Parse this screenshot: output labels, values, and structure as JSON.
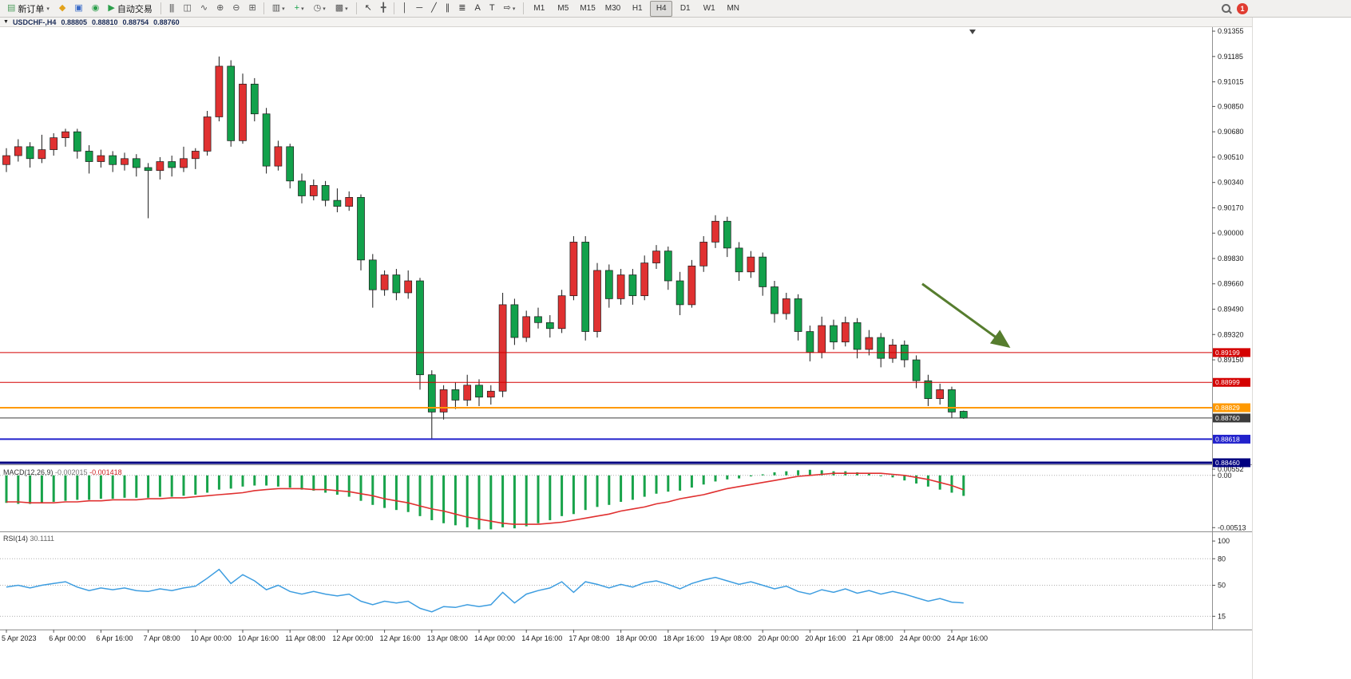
{
  "toolbar": {
    "groups": [
      [
        {
          "name": "new-order-button",
          "glyph": "▤",
          "color": "#4f9d5d",
          "label": "新订单",
          "caret": true
        },
        {
          "name": "mql5-button",
          "glyph": "◆",
          "color": "#e2a21b"
        },
        {
          "name": "community-button",
          "glyph": "▣",
          "color": "#3a6bc8"
        },
        {
          "name": "metaquotes-button",
          "glyph": "◉",
          "color": "#2c9f4b"
        },
        {
          "name": "algo-trading-button",
          "glyph": "▶",
          "color": "#2c9f4b",
          "label": "自动交易"
        }
      ],
      [
        {
          "name": "bar-chart-button",
          "glyph": "|||",
          "color": "#555555"
        },
        {
          "name": "candle-chart-button",
          "glyph": "◫",
          "color": "#555555"
        },
        {
          "name": "line-chart-button",
          "glyph": "∿",
          "color": "#555555"
        },
        {
          "name": "zoom-in-button",
          "glyph": "⊕",
          "color": "#555555"
        },
        {
          "name": "zoom-out-button",
          "glyph": "⊖",
          "color": "#555555"
        },
        {
          "name": "tile-windows-button",
          "glyph": "⊞",
          "color": "#555555"
        }
      ],
      [
        {
          "name": "charts-list-button",
          "glyph": "▥",
          "color": "#555555",
          "caret": true
        },
        {
          "name": "indicators-button",
          "glyph": "+",
          "color": "#18a34a",
          "caret": true
        },
        {
          "name": "periods-button",
          "glyph": "◷",
          "color": "#555555",
          "caret": true
        },
        {
          "name": "templates-button",
          "glyph": "▩",
          "color": "#555555",
          "caret": true
        }
      ],
      [
        {
          "name": "cursor-button",
          "glyph": "↖",
          "color": "#333333"
        },
        {
          "name": "crosshair-button",
          "glyph": "╋",
          "color": "#555555"
        }
      ],
      [
        {
          "name": "vertical-line-button",
          "glyph": "│",
          "color": "#333333"
        },
        {
          "name": "horizontal-line-button",
          "glyph": "─",
          "color": "#333333"
        },
        {
          "name": "trendline-button",
          "glyph": "╱",
          "color": "#333333"
        },
        {
          "name": "channel-button",
          "glyph": "∥",
          "color": "#333333"
        },
        {
          "name": "fibonacci-button",
          "glyph": "≣",
          "color": "#333333"
        },
        {
          "name": "text-button",
          "glyph": "A",
          "color": "#333333"
        },
        {
          "name": "label-button",
          "glyph": "T",
          "color": "#333333"
        },
        {
          "name": "shapes-button",
          "glyph": "⇨",
          "color": "#333333",
          "caret": true
        }
      ]
    ],
    "timeframes": {
      "items": [
        "M1",
        "M5",
        "M15",
        "M30",
        "H1",
        "H4",
        "D1",
        "W1",
        "MN"
      ],
      "active": "H4"
    },
    "notification_count": "1"
  },
  "chart_header": {
    "collapse_icon": "▼",
    "title": "USDCHF-,H4",
    "open": "0.88805",
    "high": "0.88810",
    "low": "0.88754",
    "close": "0.88760"
  },
  "chart_data": [
    {
      "type": "candlestick",
      "title": "USDCHF-,H4",
      "period": "H4",
      "up_color": "#e03131",
      "down_color": "#12a14b",
      "wick_color": "#1a1a1a",
      "x_labels": [
        "5 Apr 2023",
        "6 Apr 00:00",
        "6 Apr 16:00",
        "7 Apr 08:00",
        "10 Apr 00:00",
        "10 Apr 16:00",
        "11 Apr 08:00",
        "12 Apr 00:00",
        "12 Apr 16:00",
        "13 Apr 08:00",
        "14 Apr 00:00",
        "14 Apr 16:00",
        "17 Apr 08:00",
        "18 Apr 00:00",
        "18 Apr 16:00",
        "19 Apr 08:00",
        "20 Apr 00:00",
        "20 Apr 16:00",
        "21 Apr 08:00",
        "24 Apr 00:00",
        "24 Apr 16:00"
      ],
      "x_label_every": 4,
      "y_axis": {
        "max": 0.91382,
        "min": 0.88449,
        "ticks": [
          "0.91355",
          "0.91185",
          "0.91015",
          "0.90850",
          "0.90680",
          "0.90510",
          "0.90340",
          "0.90170",
          "0.90000",
          "0.89830",
          "0.89660",
          "0.89490",
          "0.89320",
          "0.89150"
        ]
      },
      "ohlc": [
        [
          0.9046,
          0.9057,
          0.9041,
          0.9052
        ],
        [
          0.9052,
          0.9063,
          0.9048,
          0.9058
        ],
        [
          0.9058,
          0.9061,
          0.9044,
          0.905
        ],
        [
          0.905,
          0.9066,
          0.9047,
          0.9056
        ],
        [
          0.9056,
          0.9067,
          0.9052,
          0.9064
        ],
        [
          0.9064,
          0.907,
          0.9058,
          0.9068
        ],
        [
          0.9068,
          0.907,
          0.905,
          0.9055
        ],
        [
          0.9055,
          0.9059,
          0.904,
          0.9048
        ],
        [
          0.9048,
          0.9056,
          0.9044,
          0.9052
        ],
        [
          0.9052,
          0.9055,
          0.9041,
          0.9046
        ],
        [
          0.9046,
          0.9054,
          0.9042,
          0.905
        ],
        [
          0.905,
          0.9053,
          0.9038,
          0.9044
        ],
        [
          0.9044,
          0.9047,
          0.901,
          0.9042
        ],
        [
          0.9042,
          0.9051,
          0.9036,
          0.9048
        ],
        [
          0.9048,
          0.9052,
          0.9038,
          0.9044
        ],
        [
          0.9044,
          0.9058,
          0.9041,
          0.905
        ],
        [
          0.905,
          0.9057,
          0.9043,
          0.9055
        ],
        [
          0.9055,
          0.9082,
          0.9052,
          0.9078
        ],
        [
          0.9078,
          0.91185,
          0.9075,
          0.9112
        ],
        [
          0.9112,
          0.9116,
          0.9058,
          0.9062
        ],
        [
          0.9062,
          0.9107,
          0.906,
          0.91
        ],
        [
          0.91,
          0.9104,
          0.9075,
          0.908
        ],
        [
          0.908,
          0.9084,
          0.904,
          0.9045
        ],
        [
          0.9045,
          0.9062,
          0.9042,
          0.9058
        ],
        [
          0.9058,
          0.906,
          0.903,
          0.9035
        ],
        [
          0.9035,
          0.904,
          0.902,
          0.9025
        ],
        [
          0.9025,
          0.9036,
          0.9022,
          0.9032
        ],
        [
          0.9032,
          0.9035,
          0.9018,
          0.9022
        ],
        [
          0.9022,
          0.903,
          0.9014,
          0.9018
        ],
        [
          0.9018,
          0.9028,
          0.9015,
          0.9024
        ],
        [
          0.9024,
          0.9026,
          0.8975,
          0.8982
        ],
        [
          0.8982,
          0.8986,
          0.895,
          0.8962
        ],
        [
          0.8962,
          0.8975,
          0.8958,
          0.8972
        ],
        [
          0.8972,
          0.8976,
          0.8955,
          0.896
        ],
        [
          0.896,
          0.8975,
          0.8956,
          0.8968
        ],
        [
          0.8968,
          0.897,
          0.8895,
          0.8905
        ],
        [
          0.8905,
          0.8908,
          0.8862,
          0.888
        ],
        [
          0.888,
          0.8898,
          0.8875,
          0.8895
        ],
        [
          0.8895,
          0.89,
          0.8882,
          0.8888
        ],
        [
          0.8888,
          0.8905,
          0.8884,
          0.8898
        ],
        [
          0.8898,
          0.8902,
          0.8884,
          0.889
        ],
        [
          0.889,
          0.8898,
          0.8885,
          0.8894
        ],
        [
          0.8894,
          0.896,
          0.889,
          0.8952
        ],
        [
          0.8952,
          0.8956,
          0.8925,
          0.893
        ],
        [
          0.893,
          0.8948,
          0.8927,
          0.8944
        ],
        [
          0.8944,
          0.895,
          0.8936,
          0.894
        ],
        [
          0.894,
          0.8945,
          0.893,
          0.8936
        ],
        [
          0.8936,
          0.8962,
          0.8933,
          0.8958
        ],
        [
          0.8958,
          0.8998,
          0.8955,
          0.8994
        ],
        [
          0.8994,
          0.8998,
          0.8928,
          0.8934
        ],
        [
          0.8934,
          0.898,
          0.893,
          0.8975
        ],
        [
          0.8975,
          0.8979,
          0.895,
          0.8956
        ],
        [
          0.8956,
          0.8976,
          0.8952,
          0.8972
        ],
        [
          0.8972,
          0.8976,
          0.8952,
          0.8958
        ],
        [
          0.8958,
          0.8985,
          0.8955,
          0.898
        ],
        [
          0.898,
          0.8992,
          0.8976,
          0.8988
        ],
        [
          0.8988,
          0.8991,
          0.8962,
          0.8968
        ],
        [
          0.8968,
          0.8974,
          0.8945,
          0.8952
        ],
        [
          0.8952,
          0.8982,
          0.895,
          0.8978
        ],
        [
          0.8978,
          0.8998,
          0.8974,
          0.8994
        ],
        [
          0.8994,
          0.9012,
          0.899,
          0.9008
        ],
        [
          0.9008,
          0.9011,
          0.8984,
          0.899
        ],
        [
          0.899,
          0.8994,
          0.8968,
          0.8974
        ],
        [
          0.8974,
          0.8988,
          0.897,
          0.8984
        ],
        [
          0.8984,
          0.8987,
          0.8958,
          0.8964
        ],
        [
          0.8964,
          0.8968,
          0.894,
          0.8946
        ],
        [
          0.8946,
          0.896,
          0.8942,
          0.8956
        ],
        [
          0.8956,
          0.8959,
          0.8928,
          0.8934
        ],
        [
          0.8934,
          0.8938,
          0.8914,
          0.892
        ],
        [
          0.892,
          0.8944,
          0.8916,
          0.8938
        ],
        [
          0.8938,
          0.8942,
          0.8922,
          0.8927
        ],
        [
          0.8927,
          0.8944,
          0.8924,
          0.894
        ],
        [
          0.894,
          0.8943,
          0.8916,
          0.8922
        ],
        [
          0.8922,
          0.8935,
          0.8918,
          0.893
        ],
        [
          0.893,
          0.8933,
          0.891,
          0.8916
        ],
        [
          0.8916,
          0.8929,
          0.8913,
          0.8925
        ],
        [
          0.8925,
          0.8928,
          0.891,
          0.8915
        ],
        [
          0.8915,
          0.8918,
          0.8896,
          0.8901
        ],
        [
          0.8901,
          0.8905,
          0.8884,
          0.8889
        ],
        [
          0.8889,
          0.8899,
          0.8885,
          0.8895
        ],
        [
          0.8895,
          0.8897,
          0.8876,
          0.888
        ],
        [
          0.88805,
          0.8881,
          0.88754,
          0.8876
        ]
      ],
      "lines": [
        {
          "price": 0.89199,
          "label": "0.89199",
          "color": "#d40000",
          "width": 1
        },
        {
          "price": 0.88999,
          "label": "0.88999",
          "color": "#d40000",
          "width": 1
        },
        {
          "price": 0.88829,
          "label": "0.88829",
          "color": "#ff9900",
          "width": 2
        },
        {
          "price": 0.8876,
          "label": "0.88760",
          "color": "#3c3c3c",
          "width": 1
        },
        {
          "price": 0.88618,
          "label": "0.88618",
          "color": "#2222cc",
          "width": 2
        },
        {
          "price": 0.8846,
          "label": "0.88460",
          "color": "#000080",
          "width": 3
        }
      ],
      "arrow": {
        "from_bar": 77.5,
        "from_price": 0.8966,
        "to_bar": 84.8,
        "to_price": 0.8924,
        "color": "#567d2e"
      }
    },
    {
      "type": "macd",
      "label": "MACD(12,26,9)",
      "values_text": [
        "-0.002015",
        "-0.001418"
      ],
      "histogram_color": "#18a34a",
      "signal_color": "#e03030",
      "axis_labels": [
        "0.00552",
        "0.00",
        "-0.00513"
      ],
      "y_max": 0.001,
      "y_min": -0.0055,
      "histogram": [
        -0.0027,
        -0.0028,
        -0.0028,
        -0.0027,
        -0.0026,
        -0.0025,
        -0.0024,
        -0.0024,
        -0.0023,
        -0.0023,
        -0.0022,
        -0.0022,
        -0.0022,
        -0.0021,
        -0.0021,
        -0.002,
        -0.0019,
        -0.0017,
        -0.0014,
        -0.0013,
        -0.0011,
        -0.001,
        -0.001,
        -0.0011,
        -0.0012,
        -0.0014,
        -0.0015,
        -0.0017,
        -0.0019,
        -0.0021,
        -0.0025,
        -0.0029,
        -0.0032,
        -0.0034,
        -0.0036,
        -0.004,
        -0.0044,
        -0.0047,
        -0.0049,
        -0.0051,
        -0.0053,
        -0.0053,
        -0.0051,
        -0.0052,
        -0.005,
        -0.0047,
        -0.0044,
        -0.004,
        -0.0038,
        -0.0034,
        -0.0031,
        -0.0029,
        -0.0026,
        -0.0024,
        -0.0021,
        -0.0018,
        -0.0016,
        -0.0015,
        -0.0012,
        -0.0009,
        -0.0006,
        -0.0004,
        -0.0003,
        -0.0001,
        0.0001,
        0.0003,
        0.0004,
        0.0005,
        0.00055,
        0.0005,
        0.0004,
        0.0004,
        0.0003,
        0.0002,
        0.0,
        -0.0002,
        -0.0005,
        -0.0008,
        -0.0011,
        -0.0014,
        -0.0017,
        -0.002015
      ],
      "signal": [
        -0.0026,
        -0.0026,
        -0.0027,
        -0.0027,
        -0.0027,
        -0.0026,
        -0.0026,
        -0.0025,
        -0.0025,
        -0.0024,
        -0.0024,
        -0.0024,
        -0.0023,
        -0.0023,
        -0.0022,
        -0.0022,
        -0.0021,
        -0.002,
        -0.0019,
        -0.0018,
        -0.0017,
        -0.0015,
        -0.0014,
        -0.0013,
        -0.0013,
        -0.0013,
        -0.0014,
        -0.0014,
        -0.0015,
        -0.0016,
        -0.0018,
        -0.002,
        -0.0023,
        -0.0025,
        -0.0027,
        -0.003,
        -0.0033,
        -0.0035,
        -0.0038,
        -0.0041,
        -0.0043,
        -0.0045,
        -0.0047,
        -0.0048,
        -0.0048,
        -0.0048,
        -0.0047,
        -0.0046,
        -0.0044,
        -0.0042,
        -0.004,
        -0.0038,
        -0.0035,
        -0.0033,
        -0.0031,
        -0.0028,
        -0.0026,
        -0.0023,
        -0.0021,
        -0.0019,
        -0.0016,
        -0.0013,
        -0.0011,
        -0.0009,
        -0.0007,
        -0.0005,
        -0.0003,
        -0.0001,
        0.0,
        0.0001,
        0.0002,
        0.0002,
        0.0002,
        0.0002,
        0.0002,
        0.0001,
        0.0,
        -0.0002,
        -0.0004,
        -0.0007,
        -0.001,
        -0.001418
      ]
    },
    {
      "type": "rsi",
      "label": "RSI(14)",
      "value_text": "30.1111",
      "line_color": "#3d9de0",
      "axis_labels": [
        "100",
        "80",
        "50",
        "15"
      ],
      "levels": [
        80,
        50,
        15
      ],
      "y_max": 110,
      "y_min": 0,
      "values": [
        48,
        50,
        47,
        50,
        52,
        54,
        48,
        44,
        47,
        45,
        47,
        44,
        43,
        46,
        44,
        47,
        49,
        58,
        68,
        52,
        62,
        55,
        45,
        50,
        43,
        40,
        43,
        40,
        38,
        40,
        32,
        28,
        32,
        30,
        32,
        24,
        20,
        26,
        25,
        28,
        26,
        28,
        42,
        30,
        40,
        44,
        47,
        54,
        42,
        54,
        51,
        47,
        51,
        48,
        53,
        55,
        51,
        46,
        52,
        56,
        59,
        55,
        51,
        54,
        50,
        46,
        49,
        43,
        40,
        45,
        42,
        46,
        41,
        44,
        40,
        43,
        40,
        36,
        32,
        35,
        31,
        30.11
      ]
    }
  ]
}
